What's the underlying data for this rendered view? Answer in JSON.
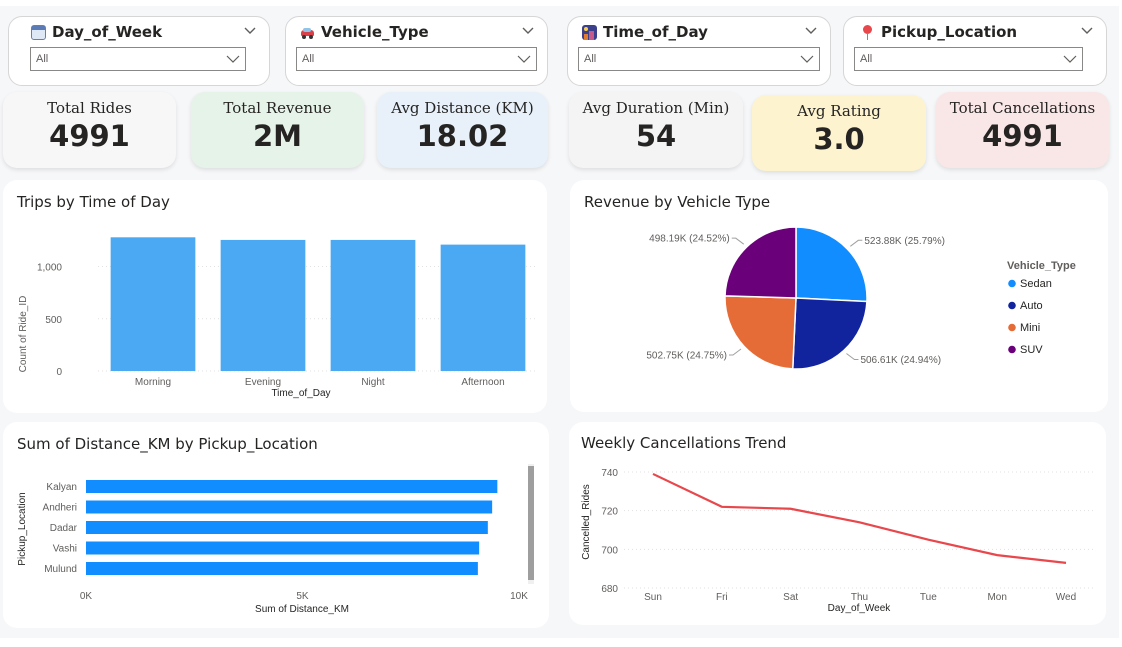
{
  "slicers": [
    {
      "label": "Day_of_Week",
      "value": "All",
      "icon": "calendar-icon"
    },
    {
      "label": "Vehicle_Type",
      "value": "All",
      "icon": "car-icon"
    },
    {
      "label": "Time_of_Day",
      "value": "All",
      "icon": "night-city-icon"
    },
    {
      "label": "Pickup_Location",
      "value": "All",
      "icon": "pin-icon"
    }
  ],
  "kpis": [
    {
      "label": "Total Rides",
      "value": "4991",
      "color": "#f7f7f7"
    },
    {
      "label": "Total Revenue",
      "value": "2M",
      "color": "#e6f3e8"
    },
    {
      "label": "Avg Distance (KM)",
      "value": "18.02",
      "color": "#e8f1fa"
    },
    {
      "label": "Avg Duration (Min)",
      "value": "54",
      "color": "#f4f4f4"
    },
    {
      "label": "Avg Rating",
      "value": "3.0",
      "color": "#fdf3cf"
    },
    {
      "label": "Total Cancellations",
      "value": "4991",
      "color": "#f9e6e6"
    }
  ],
  "chart_data": [
    {
      "type": "bar",
      "title": "Trips by Time of Day",
      "xlabel": "Time_of_Day",
      "ylabel": "Count of Ride_ID",
      "categories": [
        "Morning",
        "Evening",
        "Night",
        "Afternoon"
      ],
      "values": [
        1280,
        1255,
        1255,
        1210
      ],
      "yticks": [
        "0",
        "500",
        "1,000"
      ],
      "ylim": [
        0,
        1350
      ],
      "color": "#4ba8f2"
    },
    {
      "type": "pie",
      "title": "Revenue by Vehicle Type",
      "legend_title": "Vehicle_Type",
      "legend_position": "right",
      "slices": [
        {
          "name": "Sedan",
          "value": 523.88,
          "label": "523.88K (25.79%)",
          "color": "#118dff"
        },
        {
          "name": "Auto",
          "value": 506.61,
          "label": "506.61K (24.94%)",
          "color": "#12239e"
        },
        {
          "name": "Mini",
          "value": 502.75,
          "label": "502.75K (24.75%)",
          "color": "#e66c37"
        },
        {
          "name": "SUV",
          "value": 498.19,
          "label": "498.19K (24.52%)",
          "color": "#6b007b"
        }
      ]
    },
    {
      "type": "bar",
      "orientation": "horizontal",
      "title": "Sum of Distance_KM by Pickup_Location",
      "xlabel": "Sum of Distance_KM",
      "ylabel": "Pickup_Location",
      "categories": [
        "Kalyan",
        "Andheri",
        "Dadar",
        "Vashi",
        "Mulund"
      ],
      "values": [
        9500,
        9380,
        9280,
        9080,
        9050
      ],
      "xticks": [
        "0K",
        "5K",
        "10K"
      ],
      "xlim": [
        0,
        10000
      ],
      "color": "#118dff"
    },
    {
      "type": "line",
      "title": "Weekly Cancellations Trend",
      "xlabel": "Day_of_Week",
      "ylabel": "Cancelled_Rides",
      "categories": [
        "Sun",
        "Fri",
        "Sat",
        "Thu",
        "Tue",
        "Mon",
        "Wed"
      ],
      "values": [
        739,
        722,
        721,
        714,
        705,
        697,
        693
      ],
      "yticks": [
        "680",
        "700",
        "720",
        "740"
      ],
      "ylim": [
        680,
        740
      ],
      "color": "#e8474c"
    }
  ]
}
